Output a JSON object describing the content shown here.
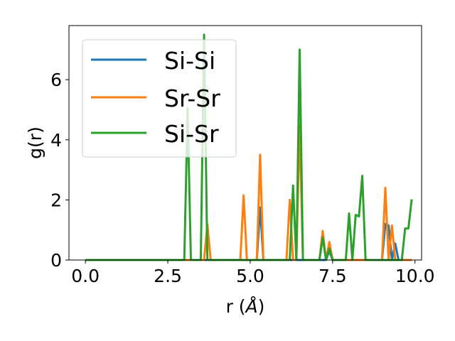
{
  "chart_data": {
    "type": "line",
    "title": "",
    "xlabel": "r (",
    "xlabel_unit": "Å",
    "xlabel_close": ")",
    "ylabel": "g(r)",
    "xlim": [
      -0.5,
      10.2
    ],
    "ylim": [
      0,
      7.8
    ],
    "xticks": [
      0.0,
      2.5,
      5.0,
      7.5,
      10.0
    ],
    "xtick_labels": [
      "0.0",
      "2.5",
      "5.0",
      "7.5",
      "10.0"
    ],
    "yticks": [
      0,
      2,
      4,
      6
    ],
    "ytick_labels": [
      "0",
      "2",
      "4",
      "6"
    ],
    "grid": false,
    "legend_position": "top-left",
    "x": [
      0.0,
      0.1,
      0.2,
      0.3,
      0.4,
      0.5,
      0.6,
      0.7,
      0.8,
      0.9,
      1.0,
      1.1,
      1.2,
      1.3,
      1.4,
      1.5,
      1.6,
      1.7,
      1.8,
      1.9,
      2.0,
      2.1,
      2.2,
      2.3,
      2.4,
      2.5,
      2.6,
      2.7,
      2.8,
      2.9,
      3.0,
      3.1,
      3.2,
      3.3,
      3.4,
      3.5,
      3.6,
      3.7,
      3.8,
      3.9,
      4.0,
      4.1,
      4.2,
      4.3,
      4.4,
      4.5,
      4.6,
      4.7,
      4.8,
      4.9,
      5.0,
      5.1,
      5.2,
      5.3,
      5.4,
      5.5,
      5.6,
      5.7,
      5.8,
      5.9,
      6.0,
      6.1,
      6.2,
      6.3,
      6.4,
      6.5,
      6.6,
      6.7,
      6.8,
      6.9,
      7.0,
      7.1,
      7.2,
      7.3,
      7.4,
      7.5,
      7.6,
      7.7,
      7.8,
      7.9,
      8.0,
      8.1,
      8.2,
      8.3,
      8.4,
      8.5,
      8.6,
      8.7,
      8.8,
      8.9,
      9.0,
      9.1,
      9.2,
      9.3,
      9.4,
      9.5,
      9.6,
      9.7,
      9.8,
      9.9
    ],
    "series": [
      {
        "name": "Si-Si",
        "color": "#1f77b4",
        "values": [
          0,
          0,
          0,
          0,
          0,
          0,
          0,
          0,
          0,
          0,
          0,
          0,
          0,
          0,
          0,
          0,
          0,
          0,
          0,
          0,
          0,
          0,
          0,
          0,
          0,
          0,
          0,
          0,
          0,
          0,
          0,
          0,
          0,
          0,
          0,
          0,
          0,
          0,
          0,
          0,
          0,
          0,
          0,
          0,
          0,
          0,
          0,
          0,
          0,
          0,
          0,
          0,
          0,
          1.75,
          0,
          0,
          0,
          0,
          0,
          0,
          0,
          0,
          0,
          0,
          0,
          0,
          0,
          0,
          0,
          0,
          0,
          0,
          0,
          0,
          0.3,
          0,
          0,
          0,
          0,
          0,
          0,
          0,
          0,
          0,
          0,
          0,
          0,
          0,
          0,
          0,
          0,
          1.2,
          1.15,
          0,
          0.55,
          0,
          0,
          0,
          0,
          0
        ]
      },
      {
        "name": "Sr-Sr",
        "color": "#ff7f0e",
        "values": [
          0,
          0,
          0,
          0,
          0,
          0,
          0,
          0,
          0,
          0,
          0,
          0,
          0,
          0,
          0,
          0,
          0,
          0,
          0,
          0,
          0,
          0,
          0,
          0,
          0,
          0,
          0,
          0,
          0,
          0,
          0,
          0,
          0,
          0,
          0,
          0,
          0,
          1.2,
          0,
          0,
          0,
          0,
          0,
          0,
          0,
          0,
          0,
          0,
          2.15,
          0,
          0,
          0,
          0,
          3.5,
          0,
          0,
          0,
          0,
          0,
          0,
          0,
          0,
          2.0,
          0,
          0,
          4.5,
          0,
          0,
          0,
          0,
          0,
          0,
          0.97,
          0,
          0.6,
          0,
          0,
          0,
          0,
          0,
          0,
          0,
          0,
          0,
          0,
          0,
          0,
          0,
          0,
          0,
          0,
          2.4,
          0,
          1.15,
          0,
          0,
          0,
          0,
          0,
          0
        ]
      },
      {
        "name": "Si-Sr",
        "color": "#2ca02c",
        "values": [
          0,
          0,
          0,
          0,
          0,
          0,
          0,
          0,
          0,
          0,
          0,
          0,
          0,
          0,
          0,
          0,
          0,
          0,
          0,
          0,
          0,
          0,
          0,
          0,
          0,
          0,
          0,
          0,
          0,
          0,
          0,
          5.05,
          0,
          0,
          0,
          0,
          7.5,
          0,
          0,
          0,
          0,
          0,
          0,
          0,
          0,
          0,
          0,
          0,
          0,
          0,
          0,
          0,
          0,
          0,
          0,
          0,
          0,
          0,
          0,
          0,
          0,
          0,
          0,
          2.48,
          0,
          7.0,
          0,
          0,
          0,
          0,
          0,
          0,
          0.75,
          0,
          0.38,
          0,
          0,
          0,
          0,
          0,
          1.55,
          0,
          1.5,
          1.45,
          2.8,
          0,
          0,
          0,
          0,
          0,
          0,
          0,
          0,
          0,
          0,
          0,
          0,
          1.05,
          1.05,
          2.02
        ]
      }
    ]
  }
}
